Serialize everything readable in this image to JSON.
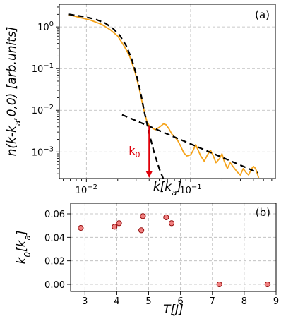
{
  "chart_data": [
    {
      "id": "a",
      "type": "line",
      "panel_label": "(a)",
      "xlabel": "k[k_a]",
      "ylabel": "n(k-k_a,0,0) [arb.units]",
      "xscale": "log",
      "yscale": "log",
      "xlim": [
        0.0055,
        0.65
      ],
      "ylim": [
        0.00023,
        3.5
      ],
      "grid": true,
      "x_ticks": [
        {
          "value": 0.01,
          "base": "10",
          "exp": "−2"
        },
        {
          "value": 0.1,
          "base": "10",
          "exp": "−1"
        }
      ],
      "y_ticks": [
        {
          "value": 1,
          "base": "10",
          "exp": "0"
        },
        {
          "value": 0.1,
          "base": "10",
          "exp": "−1"
        },
        {
          "value": 0.01,
          "base": "10",
          "exp": "−2"
        },
        {
          "value": 0.001,
          "base": "10",
          "exp": "−3"
        }
      ],
      "series": [
        {
          "style": "solid",
          "color": "#f5a31a",
          "points": [
            [
              0.0068,
              1.95
            ],
            [
              0.0085,
              1.7
            ],
            [
              0.011,
              1.45
            ],
            [
              0.014,
              1.15
            ],
            [
              0.017,
              0.85
            ],
            [
              0.02,
              0.6
            ],
            [
              0.023,
              0.35
            ],
            [
              0.026,
              0.2
            ],
            [
              0.029,
              0.09
            ],
            [
              0.032,
              0.035
            ],
            [
              0.035,
              0.012
            ],
            [
              0.038,
              0.0055
            ],
            [
              0.04,
              0.0043
            ],
            [
              0.043,
              0.0037
            ],
            [
              0.046,
              0.0034
            ],
            [
              0.05,
              0.0039
            ],
            [
              0.055,
              0.0047
            ],
            [
              0.058,
              0.0045
            ],
            [
              0.062,
              0.0036
            ],
            [
              0.066,
              0.0027
            ],
            [
              0.07,
              0.0023
            ],
            [
              0.075,
              0.0019
            ],
            [
              0.08,
              0.0014
            ],
            [
              0.086,
              0.00095
            ],
            [
              0.092,
              0.0008
            ],
            [
              0.1,
              0.00085
            ],
            [
              0.106,
              0.0011
            ],
            [
              0.112,
              0.0015
            ],
            [
              0.118,
              0.0011
            ],
            [
              0.125,
              0.0008
            ],
            [
              0.135,
              0.0006
            ],
            [
              0.145,
              0.00085
            ],
            [
              0.155,
              0.0011
            ],
            [
              0.165,
              0.0008
            ],
            [
              0.175,
              0.00055
            ],
            [
              0.19,
              0.0007
            ],
            [
              0.2,
              0.0009
            ],
            [
              0.21,
              0.0006
            ],
            [
              0.225,
              0.0004
            ],
            [
              0.24,
              0.00055
            ],
            [
              0.26,
              0.00042
            ],
            [
              0.28,
              0.00033
            ],
            [
              0.3,
              0.00028
            ],
            [
              0.32,
              0.0004
            ],
            [
              0.34,
              0.00032
            ],
            [
              0.36,
              0.00028
            ],
            [
              0.38,
              0.00038
            ],
            [
              0.4,
              0.00045
            ],
            [
              0.42,
              0.0004
            ],
            [
              0.44,
              0.00028
            ],
            [
              0.45,
              0.00024
            ]
          ]
        },
        {
          "style": "dashed",
          "color": "#000000",
          "points": [
            [
              0.0068,
              2.0
            ],
            [
              0.009,
              1.8
            ],
            [
              0.012,
              1.55
            ],
            [
              0.015,
              1.25
            ],
            [
              0.018,
              0.92
            ],
            [
              0.021,
              0.62
            ],
            [
              0.024,
              0.36
            ],
            [
              0.027,
              0.18
            ],
            [
              0.03,
              0.075
            ],
            [
              0.033,
              0.028
            ],
            [
              0.036,
              0.009
            ],
            [
              0.04,
              0.0028
            ],
            [
              0.045,
              0.0009
            ],
            [
              0.05,
              0.0004
            ],
            [
              0.055,
              0.00022
            ]
          ]
        },
        {
          "style": "dashed",
          "color": "#000000",
          "points": [
            [
              0.022,
              0.0078
            ],
            [
              0.44,
              0.00032
            ]
          ]
        }
      ],
      "annotation": {
        "text": "k",
        "sub": "0",
        "color": "#e0000a",
        "x": 0.04,
        "y_from": 0.0043,
        "y_to": 0.00023
      }
    },
    {
      "id": "b",
      "type": "scatter",
      "panel_label": "(b)",
      "xlabel": "T[J]",
      "ylabel": "k_0[k_a]",
      "xlim": [
        2.55,
        9.0
      ],
      "ylim": [
        -0.006,
        0.069
      ],
      "grid": true,
      "x_ticks": [
        3,
        4,
        5,
        6,
        7,
        8,
        9
      ],
      "y_ticks": [
        0.0,
        0.02,
        0.04,
        0.06
      ],
      "y_tick_labels": [
        "0.00",
        "0.02",
        "0.04",
        "0.06"
      ],
      "marker_face": "#f08080",
      "marker_edge": "#8b0000",
      "points": [
        [
          2.87,
          0.048
        ],
        [
          3.93,
          0.049
        ],
        [
          4.07,
          0.052
        ],
        [
          4.77,
          0.046
        ],
        [
          4.82,
          0.058
        ],
        [
          5.55,
          0.057
        ],
        [
          5.72,
          0.052
        ],
        [
          7.22,
          0.0
        ],
        [
          8.73,
          0.0
        ]
      ]
    }
  ]
}
